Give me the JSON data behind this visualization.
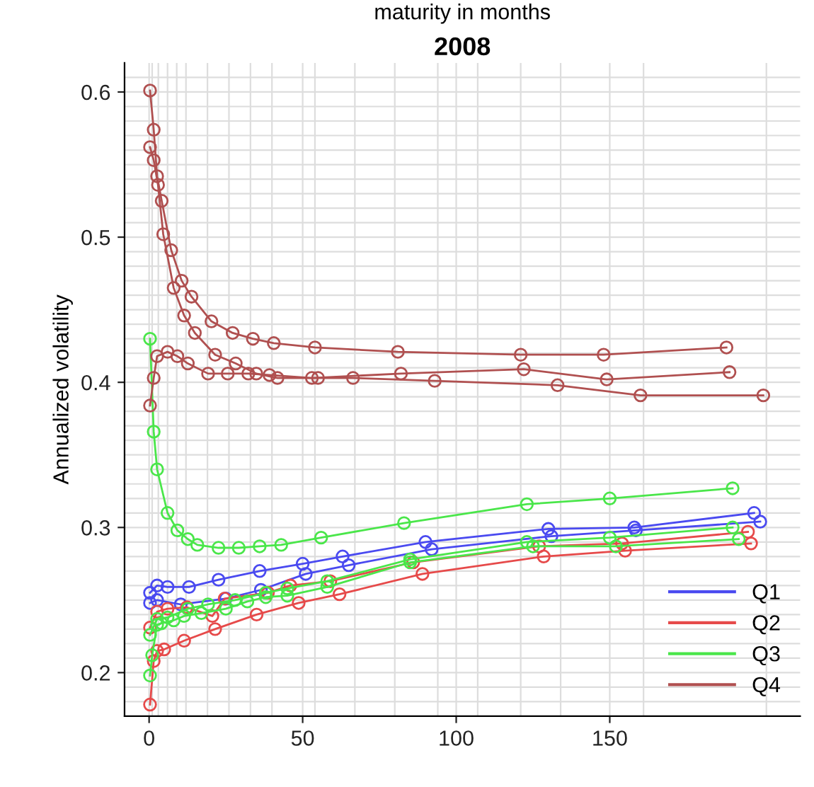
{
  "chart_data": {
    "type": "line",
    "title": "2008",
    "xlabel": "maturity in months",
    "ylabel": "Annualized volatility",
    "xlim": [
      -8,
      212
    ],
    "ylim": [
      0.17,
      0.62
    ],
    "xticks": [
      0,
      50,
      100,
      150,
      {
        "value": 1,
        "label": null
      },
      {
        "value": 3,
        "label": null
      },
      {
        "value": 6,
        "label": null
      },
      {
        "value": 9,
        "label": null
      },
      {
        "value": 12,
        "label": null
      },
      {
        "value": 19,
        "label": null
      },
      {
        "value": 26,
        "label": null
      },
      {
        "value": 33,
        "label": null
      },
      {
        "value": 40,
        "label": null
      },
      {
        "value": 54,
        "label": null
      },
      {
        "value": 67,
        "label": null
      },
      {
        "value": 80,
        "label": null
      },
      {
        "value": 94,
        "label": null
      },
      {
        "value": 107,
        "label": null
      },
      {
        "value": 121,
        "label": null
      },
      {
        "value": 134,
        "label": null
      },
      {
        "value": 161,
        "label": null
      },
      {
        "value": 201,
        "label": null
      }
    ],
    "yticks": [
      0.2,
      0.3,
      0.4,
      0.5,
      0.6,
      {
        "value": 0.18,
        "label": null
      },
      {
        "value": 0.19,
        "label": null
      },
      {
        "value": 0.21,
        "label": null
      },
      {
        "value": 0.22,
        "label": null
      },
      {
        "value": 0.23,
        "label": null
      },
      {
        "value": 0.24,
        "label": null
      },
      {
        "value": 0.25,
        "label": null
      },
      {
        "value": 0.26,
        "label": null
      },
      {
        "value": 0.27,
        "label": null
      },
      {
        "value": 0.28,
        "label": null
      },
      {
        "value": 0.29,
        "label": null
      },
      {
        "value": 0.31,
        "label": null
      },
      {
        "value": 0.32,
        "label": null
      },
      {
        "value": 0.33,
        "label": null
      },
      {
        "value": 0.34,
        "label": null
      },
      {
        "value": 0.35,
        "label": null
      },
      {
        "value": 0.36,
        "label": null
      },
      {
        "value": 0.37,
        "label": null
      },
      {
        "value": 0.38,
        "label": null
      },
      {
        "value": 0.39,
        "label": null
      },
      {
        "value": 0.41,
        "label": null
      },
      {
        "value": 0.42,
        "label": null
      },
      {
        "value": 0.43,
        "label": null
      },
      {
        "value": 0.44,
        "label": null
      },
      {
        "value": 0.45,
        "label": null
      },
      {
        "value": 0.46,
        "label": null
      },
      {
        "value": 0.47,
        "label": null
      },
      {
        "value": 0.48,
        "label": null
      },
      {
        "value": 0.49,
        "label": null
      },
      {
        "value": 0.51,
        "label": null
      },
      {
        "value": 0.52,
        "label": null
      },
      {
        "value": 0.53,
        "label": null
      },
      {
        "value": 0.54,
        "label": null
      },
      {
        "value": 0.55,
        "label": null
      },
      {
        "value": 0.56,
        "label": null
      },
      {
        "value": 0.57,
        "label": null
      },
      {
        "value": 0.58,
        "label": null
      },
      {
        "value": 0.59,
        "label": null
      },
      {
        "value": 0.61,
        "label": null
      }
    ],
    "grid": true,
    "legend": "bottom right",
    "marker": "circle",
    "line_style": "solid",
    "series": [
      {
        "name": "Q1",
        "color": "#4a4af0",
        "x": [
          0.3,
          2.6,
          6,
          13,
          22.6,
          36,
          50,
          63,
          90,
          130,
          158,
          197
        ],
        "values": [
          0.255,
          0.26,
          0.259,
          0.259,
          0.264,
          0.27,
          0.275,
          0.28,
          0.29,
          0.299,
          0.3,
          0.31
        ]
      },
      {
        "color": "#4a4af0",
        "x": [
          0.3,
          2.6,
          10.3,
          25,
          36.4,
          51,
          65,
          92,
          131,
          158.5,
          199
        ],
        "values": [
          0.248,
          0.25,
          0.247,
          0.251,
          0.257,
          0.268,
          0.274,
          0.285,
          0.294,
          0.298,
          0.304
        ]
      },
      {
        "name": "Q2",
        "color": "#e64a4a",
        "x": [
          0.3,
          1.5,
          2.6,
          4.9,
          11.4,
          21.5,
          35,
          48.7,
          62,
          89,
          128.5,
          155,
          196
        ],
        "values": [
          0.178,
          0.208,
          0.215,
          0.216,
          0.222,
          0.23,
          0.24,
          0.248,
          0.254,
          0.268,
          0.28,
          0.284,
          0.289
        ]
      },
      {
        "color": "#e64a4a",
        "x": [
          0.3,
          2.6,
          6,
          12.3,
          20.6,
          24.6,
          38.7,
          46,
          59,
          86,
          127,
          154,
          195
        ],
        "values": [
          0.231,
          0.242,
          0.244,
          0.245,
          0.239,
          0.251,
          0.255,
          0.26,
          0.263,
          0.276,
          0.287,
          0.289,
          0.297
        ]
      },
      {
        "name": "Q3",
        "color": "#4ae64a",
        "x": [
          0.3,
          1.5,
          2.6,
          6,
          9.2,
          12.6,
          15.7,
          22.6,
          29.2,
          36,
          43,
          56,
          83,
          123,
          150,
          190
        ],
        "values": [
          0.43,
          0.366,
          0.34,
          0.31,
          0.298,
          0.292,
          0.288,
          0.286,
          0.286,
          0.287,
          0.288,
          0.293,
          0.303,
          0.316,
          0.32,
          0.327
        ]
      },
      {
        "color": "#4ae64a",
        "x": [
          0.3,
          1,
          2.6,
          4,
          8,
          11.4,
          17,
          25,
          32,
          38,
          45,
          58,
          85,
          125,
          152,
          192
        ],
        "values": [
          0.198,
          0.212,
          0.233,
          0.234,
          0.236,
          0.239,
          0.241,
          0.244,
          0.249,
          0.252,
          0.253,
          0.259,
          0.276,
          0.287,
          0.287,
          0.292
        ]
      },
      {
        "color": "#4ae64a",
        "x": [
          0.3,
          2.6,
          6,
          12.6,
          19.2,
          28,
          38,
          45,
          58,
          85,
          123,
          150,
          190
        ],
        "values": [
          0.226,
          0.237,
          0.238,
          0.244,
          0.247,
          0.25,
          0.255,
          0.258,
          0.263,
          0.278,
          0.29,
          0.293,
          0.3
        ]
      },
      {
        "name": "Q4",
        "color": "#b05050",
        "x": [
          0.3,
          1.5,
          2.6,
          4.1,
          7.2,
          10.6,
          13.8,
          20.3,
          27.2,
          33.8,
          40.6,
          54,
          81,
          121,
          148,
          188
        ],
        "values": [
          0.601,
          0.574,
          0.542,
          0.525,
          0.491,
          0.47,
          0.459,
          0.442,
          0.434,
          0.43,
          0.427,
          0.424,
          0.421,
          0.419,
          0.419,
          0.424
        ]
      },
      {
        "color": "#b05050",
        "x": [
          0.3,
          1.5,
          2.6,
          6,
          9.2,
          12.6,
          19.2,
          25.6,
          32.3,
          39.2,
          53,
          82,
          122,
          149,
          189
        ],
        "values": [
          0.384,
          0.403,
          0.418,
          0.421,
          0.418,
          0.413,
          0.406,
          0.406,
          0.406,
          0.405,
          0.403,
          0.406,
          0.409,
          0.402,
          0.407
        ]
      },
      {
        "color": "#b05050",
        "x": [
          0.3,
          1.5,
          2.9,
          4.6,
          8,
          11.4,
          14.9,
          21.5,
          28.2,
          34.9,
          41.8,
          55,
          66.4,
          93,
          133,
          160,
          200
        ],
        "values": [
          0.562,
          0.553,
          0.536,
          0.502,
          0.465,
          0.446,
          0.434,
          0.419,
          0.413,
          0.406,
          0.403,
          0.403,
          0.403,
          0.401,
          0.398,
          0.391,
          0.391
        ]
      }
    ]
  }
}
